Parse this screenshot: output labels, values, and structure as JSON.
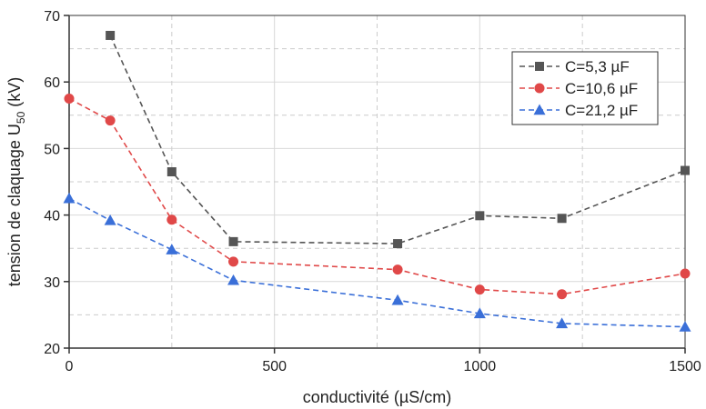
{
  "chart_data": {
    "type": "line",
    "xlabel": "conductivité (µS/cm)",
    "ylabel": "tension de claquage U",
    "ylabel_sub": "50",
    "ylabel_unit": " (kV)",
    "xlim": [
      0,
      1500
    ],
    "ylim": [
      20,
      70
    ],
    "x_ticks": [
      0,
      500,
      1000,
      1500
    ],
    "y_ticks": [
      20,
      30,
      40,
      50,
      60,
      70
    ],
    "x_tick_labels": [
      "0",
      "500",
      "1000",
      "1500"
    ],
    "y_tick_labels": [
      "20",
      "30",
      "40",
      "50",
      "60",
      "70"
    ],
    "grid": true,
    "legend_position": "top-right",
    "series": [
      {
        "name": "C=5,3 µF",
        "color": "#555555",
        "marker": "square",
        "x": [
          100,
          250,
          400,
          800,
          1000,
          1200,
          1500
        ],
        "y": [
          67.0,
          46.5,
          36.0,
          35.7,
          39.9,
          39.5,
          46.7
        ]
      },
      {
        "name": "C=10,6 µF",
        "color": "#e04848",
        "marker": "circle",
        "x": [
          0,
          100,
          250,
          400,
          800,
          1000,
          1200,
          1500
        ],
        "y": [
          57.5,
          54.2,
          39.3,
          33.0,
          31.8,
          28.8,
          28.1,
          31.2
        ]
      },
      {
        "name": "C=21,2 µF",
        "color": "#3a6fd8",
        "marker": "triangle",
        "x": [
          0,
          100,
          250,
          400,
          800,
          1000,
          1200,
          1500
        ],
        "y": [
          42.5,
          39.2,
          34.8,
          30.2,
          27.2,
          25.2,
          23.7,
          23.2
        ]
      }
    ]
  }
}
